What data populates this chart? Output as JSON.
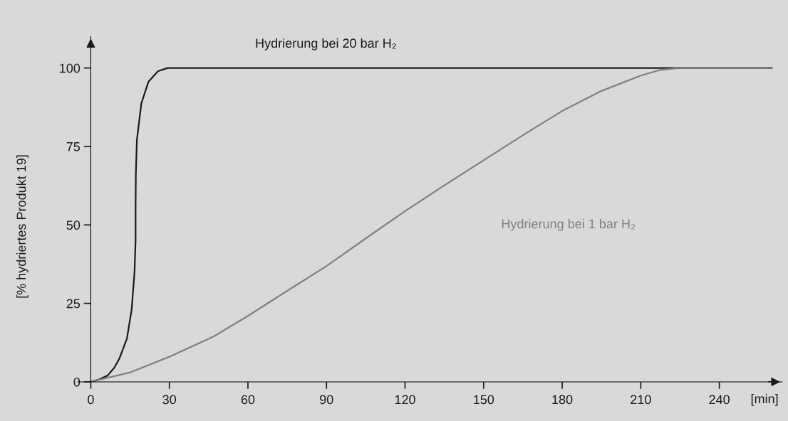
{
  "chart_data": {
    "type": "line",
    "ylabel": "[% hydriertes Produkt 19]",
    "xlabel": "[min]",
    "xlim": [
      -5,
      264
    ],
    "ylim": [
      0,
      110
    ],
    "xticks": [
      0,
      30,
      60,
      90,
      120,
      150,
      180,
      210,
      240
    ],
    "yticks": [
      0,
      25,
      50,
      75,
      100
    ],
    "grid": false,
    "legend": false,
    "marker": "none",
    "line_style": "solid",
    "series": [
      {
        "name": "Hydrierung bei 20 bar H₂",
        "color": "#1a1a1a",
        "x": [
          0,
          3,
          6.4,
          9,
          11,
          13.8,
          15.6,
          16.7,
          17.1,
          17.1,
          17.2,
          17.6,
          19.3,
          22,
          25.7,
          29.4,
          60,
          120,
          180,
          240,
          260
        ],
        "values": [
          0,
          0.7,
          2,
          4.5,
          7.6,
          13.8,
          23,
          35,
          45,
          55,
          66,
          77,
          88.7,
          95.6,
          99,
          100,
          100,
          100,
          100,
          100,
          100
        ]
      },
      {
        "name": "Hydrierung bei 1 bar H₂",
        "color": "#808080",
        "x": [
          0,
          15,
          30,
          47,
          60,
          75,
          90,
          105,
          120,
          135,
          150,
          165,
          180,
          195,
          210,
          217,
          224.7,
          240,
          260
        ],
        "values": [
          0,
          3,
          8,
          14.5,
          21,
          29,
          36.9,
          45.7,
          54.4,
          62.6,
          70.6,
          78.6,
          86.3,
          92.7,
          97.6,
          99.3,
          100,
          100,
          100
        ]
      }
    ]
  }
}
